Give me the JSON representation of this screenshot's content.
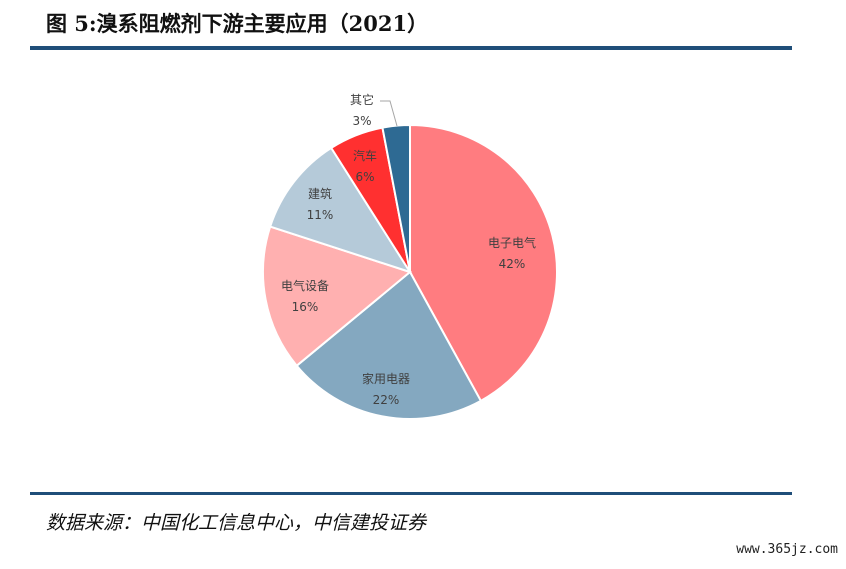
{
  "figure": {
    "title": "图 5:溴系阻燃剂下游主要应用（2021）",
    "source": "数据来源：中国化工信息中心，中信建投证券",
    "watermark": "www.365jz.com"
  },
  "chart_data": {
    "type": "pie",
    "title": "",
    "start_angle_deg": 0,
    "direction": "clockwise",
    "slices": [
      {
        "label": "电子电气",
        "value": 42,
        "display": "42%",
        "color": "#ff7c80"
      },
      {
        "label": "家用电器",
        "value": 22,
        "display": "22%",
        "color": "#84a8c0"
      },
      {
        "label": "电气设备",
        "value": 16,
        "display": "16%",
        "color": "#ffb0b0"
      },
      {
        "label": "建筑",
        "value": 11,
        "display": "11%",
        "color": "#b5cad9"
      },
      {
        "label": "汽车",
        "value": 6,
        "display": "6%",
        "color": "#ff3030"
      },
      {
        "label": "其它",
        "value": 3,
        "display": "3%",
        "color": "#2e6a93"
      }
    ]
  }
}
